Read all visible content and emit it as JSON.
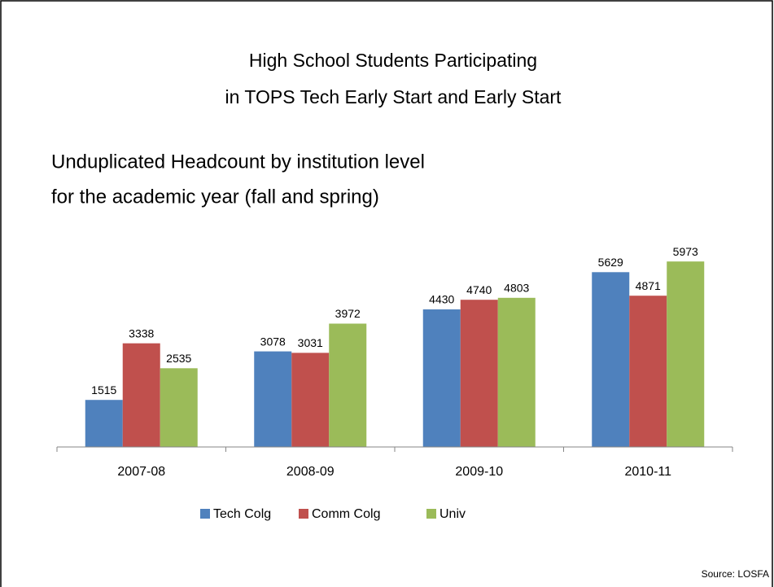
{
  "chart_data": {
    "type": "bar",
    "title": [
      "High School Students Participating",
      "in TOPS Tech Early Start and Early Start"
    ],
    "subtitle": [
      "Unduplicated Headcount by institution level",
      "for the academic year (fall and spring)"
    ],
    "categories": [
      "2007-08",
      "2008-09",
      "2009-10",
      "2010-11"
    ],
    "series": [
      {
        "name": "Tech Colg",
        "color": "#4f81bd",
        "values": [
          1515,
          3078,
          4430,
          5629
        ]
      },
      {
        "name": "Comm Colg",
        "color": "#c0504d",
        "values": [
          3338,
          3031,
          4740,
          4871
        ]
      },
      {
        "name": "Univ",
        "color": "#9bbb59",
        "values": [
          2535,
          3972,
          4803,
          5973
        ]
      }
    ],
    "ylim": [
      0,
      7000
    ],
    "legend": "bottom",
    "source": "Source: LOSFA"
  }
}
